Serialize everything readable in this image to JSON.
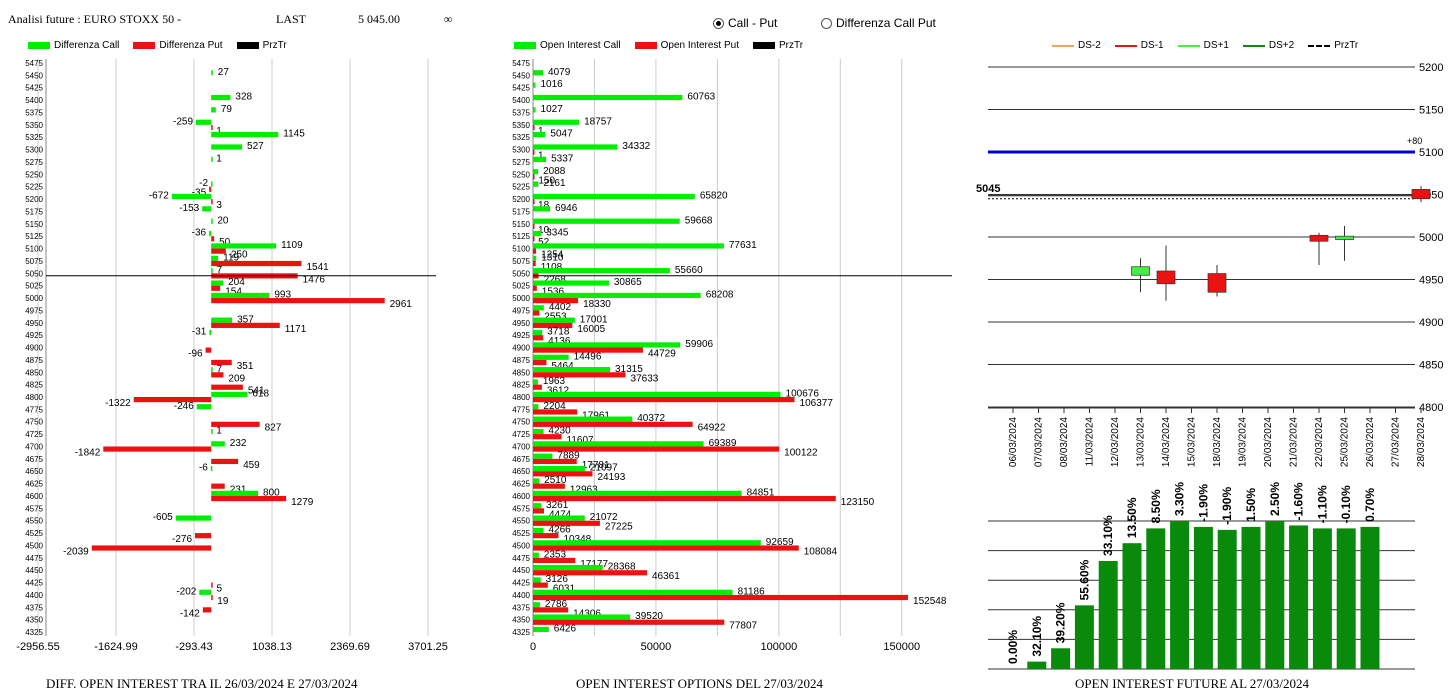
{
  "header": {
    "title": "Analisi future : EURO STOXX 50 -",
    "last_label": "LAST",
    "last_value": "5 045.00",
    "infinity": "∞"
  },
  "mode_selector": {
    "options": [
      {
        "label": "Call - Put",
        "selected": true
      },
      {
        "label": "Differenza Call Put",
        "selected": false
      }
    ]
  },
  "colors": {
    "call": "#00ee00",
    "put": "#ee1111",
    "przTr": "#000000",
    "future_bar": "#0a8a0a",
    "ds2": "#f4a460",
    "ds1": "#ee1111",
    "ds_plus1": "#44ee44",
    "ds_plus2": "#118811",
    "level_line": "#0000cc"
  },
  "panel1": {
    "legend": [
      "Differenza Call",
      "Differenza Put",
      "PrzTr"
    ],
    "caption": "DIFF. OPEN INTEREST TRA IL 26/03/2024 E 27/03/2024"
  },
  "panel2": {
    "legend": [
      "Open Interest Call",
      "Open Interest Put",
      "PrzTr"
    ],
    "caption": "OPEN INTEREST OPTIONS DEL 27/03/2024"
  },
  "panel3": {
    "legend": [
      "DS-2",
      "DS-1",
      "DS+1",
      "DS+2",
      "PrzTr"
    ],
    "price_label": "5045",
    "plus_label": "+80",
    "caption": "OPEN INTEREST FUTURE AL 27/03/2024"
  },
  "chart_data": [
    {
      "type": "bar",
      "orientation": "horizontal",
      "strikes": [
        5475,
        5450,
        5425,
        5400,
        5375,
        5350,
        5325,
        5300,
        5275,
        5250,
        5225,
        5200,
        5175,
        5150,
        5125,
        5100,
        5075,
        5050,
        5025,
        5000,
        4975,
        4950,
        4925,
        4900,
        4875,
        4850,
        4825,
        4800,
        4775,
        4750,
        4725,
        4700,
        4675,
        4650,
        4625,
        4600,
        4575,
        4550,
        4525,
        4500,
        4475,
        4450,
        4425,
        4400,
        4375,
        4350,
        4325
      ],
      "series": [
        {
          "name": "Differenza Call",
          "values": [
            null,
            27,
            null,
            328,
            79,
            -259,
            1145,
            527,
            1,
            null,
            -2,
            -672,
            -153,
            20,
            -36,
            1109,
            119,
            7,
            204,
            993,
            null,
            357,
            -31,
            null,
            null,
            7,
            null,
            618,
            -246,
            null,
            1,
            232,
            null,
            -6,
            null,
            800,
            null,
            -605,
            null,
            null,
            null,
            null,
            null,
            -202,
            null,
            null,
            null
          ]
        },
        {
          "name": "Differenza Put",
          "values": [
            null,
            null,
            null,
            null,
            null,
            1,
            null,
            null,
            null,
            null,
            -35,
            3,
            null,
            null,
            50,
            250,
            1541,
            1476,
            154,
            2961,
            null,
            1171,
            null,
            -96,
            351,
            209,
            541,
            -1322,
            null,
            827,
            null,
            -1842,
            459,
            null,
            231,
            1279,
            null,
            null,
            -276,
            -2039,
            null,
            null,
            5,
            19,
            -142,
            null,
            null
          ]
        }
      ],
      "x_ticks": [
        "-2956.55",
        "-1624.99",
        "-293.43",
        "1038.13",
        "2369.69",
        "3701.25"
      ],
      "xlim": [
        -2956.55,
        3701.25
      ],
      "przTr": 5045
    },
    {
      "type": "bar",
      "orientation": "horizontal",
      "strikes": [
        5475,
        5450,
        5425,
        5400,
        5375,
        5350,
        5325,
        5300,
        5275,
        5250,
        5225,
        5200,
        5175,
        5150,
        5125,
        5100,
        5075,
        5050,
        5025,
        5000,
        4975,
        4950,
        4925,
        4900,
        4875,
        4850,
        4825,
        4800,
        4775,
        4750,
        4725,
        4700,
        4675,
        4650,
        4625,
        4600,
        4575,
        4550,
        4525,
        4500,
        4475,
        4450,
        4425,
        4400,
        4375,
        4350,
        4325
      ],
      "series": [
        {
          "name": "Open Interest Call",
          "values": [
            null,
            4079,
            1016,
            60763,
            1027,
            18757,
            5047,
            34332,
            5337,
            2088,
            2161,
            65820,
            6946,
            59668,
            3345,
            77631,
            1310,
            55660,
            30865,
            68208,
            4402,
            17001,
            3718,
            59906,
            14496,
            31315,
            1963,
            100676,
            2204,
            40372,
            4230,
            69389,
            7889,
            21097,
            2510,
            84851,
            3261,
            21072,
            4266,
            92659,
            2353,
            28368,
            3126,
            81186,
            2786,
            39520,
            6426
          ]
        },
        {
          "name": "Open Interest Put",
          "values": [
            null,
            null,
            null,
            null,
            null,
            1,
            null,
            1,
            null,
            150,
            null,
            18,
            null,
            10,
            52,
            1254,
            1108,
            2268,
            1536,
            18330,
            2553,
            16005,
            4136,
            44729,
            5464,
            37633,
            3612,
            106377,
            17961,
            64922,
            11607,
            100122,
            17781,
            24193,
            12963,
            123150,
            4474,
            27225,
            10348,
            108084,
            17177,
            46361,
            6031,
            152548,
            14306,
            77807,
            null
          ]
        }
      ],
      "x_ticks": [
        "0",
        "50000",
        "100000",
        "150000"
      ],
      "xlim": [
        0,
        157000
      ],
      "przTr": 5045
    },
    {
      "type": "candlestick",
      "dates": [
        "06/03/2024",
        "07/03/2024",
        "08/03/2024",
        "11/03/2024",
        "12/03/2024",
        "13/03/2024",
        "14/03/2024",
        "15/03/2024",
        "18/03/2024",
        "19/03/2024",
        "20/03/2024",
        "21/03/2024",
        "22/03/2024",
        "25/03/2024",
        "26/03/2024",
        "27/03/2024",
        "28/03/2024"
      ],
      "y_ticks": [
        5200,
        5150,
        5100,
        5050,
        5000,
        4950,
        4900,
        4850,
        4800
      ],
      "ylim": [
        4800,
        5200
      ],
      "candles": [
        {
          "date": "13/03/2024",
          "open": 4955,
          "close": 4965,
          "high": 4975,
          "low": 4935,
          "color": "#44ee44"
        },
        {
          "date": "14/03/2024",
          "open": 4960,
          "close": 4945,
          "high": 4990,
          "low": 4925,
          "color": "#ee1111"
        },
        {
          "date": "18/03/2024",
          "open": 4957,
          "close": 4935,
          "high": 4967,
          "low": 4930,
          "color": "#ee1111"
        },
        {
          "date": "22/03/2024",
          "open": 5002,
          "close": 4995,
          "high": 5005,
          "low": 4967,
          "color": "#ee1111"
        },
        {
          "date": "25/03/2024",
          "open": 4997,
          "close": 5001,
          "high": 5013,
          "low": 4972,
          "color": "#44ee44"
        },
        {
          "date": "28/03/2024",
          "open": 5056,
          "close": 5045,
          "high": 5060,
          "low": 5041,
          "color": "#ee1111"
        }
      ],
      "level_line": 5100,
      "przTr": 5045
    },
    {
      "type": "bar",
      "dates": [
        "06/03/2024",
        "07/03/2024",
        "08/03/2024",
        "11/03/2024",
        "12/03/2024",
        "13/03/2024",
        "14/03/2024",
        "15/03/2024",
        "18/03/2024",
        "19/03/2024",
        "20/03/2024",
        "21/03/2024",
        "22/03/2024",
        "25/03/2024",
        "26/03/2024",
        "27/03/2024"
      ],
      "labels": [
        "0.00%",
        "32.10%",
        "39.20%",
        "55.60%",
        "33.10%",
        "13.50%",
        "8.50%",
        "3.30%",
        "-1.90%",
        "-1.90%",
        "1.50%",
        "2.50%",
        "-1.60%",
        "-1.10%",
        "-0.10%",
        "0.70%"
      ],
      "values": [
        0,
        32.1,
        39.2,
        55.6,
        33.1,
        13.5,
        8.5,
        3.3,
        -1.9,
        -1.9,
        1.5,
        2.5,
        -1.6,
        -1.1,
        -0.1,
        0.7
      ],
      "heights": [
        0.0,
        0.05,
        0.14,
        0.43,
        0.73,
        0.85,
        0.95,
        1.0,
        0.96,
        0.94,
        0.96,
        1.0,
        0.97,
        0.95,
        0.95,
        0.96
      ]
    }
  ]
}
